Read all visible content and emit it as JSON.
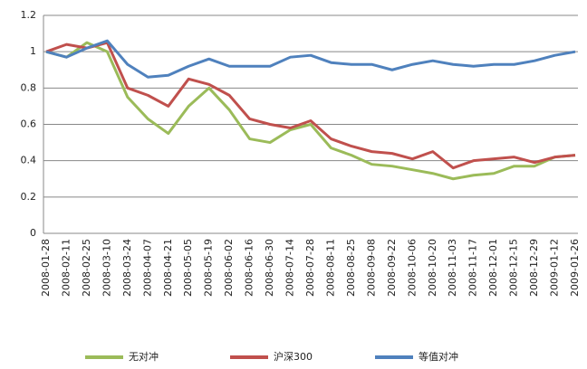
{
  "chart_data": {
    "type": "line",
    "categories": [
      "2008-01-28",
      "2008-02-11",
      "2008-02-25",
      "2008-03-10",
      "2008-03-24",
      "2008-04-07",
      "2008-04-21",
      "2008-05-05",
      "2008-05-19",
      "2008-06-02",
      "2008-06-16",
      "2008-06-30",
      "2008-07-14",
      "2008-07-28",
      "2008-08-11",
      "2008-08-25",
      "2008-09-08",
      "2008-09-22",
      "2008-10-06",
      "2008-10-20",
      "2008-11-03",
      "2008-11-17",
      "2008-12-01",
      "2008-12-15",
      "2008-12-29",
      "2009-01-12",
      "2009-01-26"
    ],
    "series": [
      {
        "name": "无对冲",
        "color": "#9bbb59",
        "values": [
          1.0,
          0.97,
          1.05,
          1.0,
          0.75,
          0.63,
          0.55,
          0.7,
          0.8,
          0.68,
          0.52,
          0.5,
          0.57,
          0.6,
          0.47,
          0.43,
          0.38,
          0.37,
          0.35,
          0.33,
          0.3,
          0.32,
          0.33,
          0.37,
          0.37,
          0.42,
          0.43
        ]
      },
      {
        "name": "沪深300",
        "color": "#c0504d",
        "values": [
          1.0,
          1.04,
          1.02,
          1.05,
          0.8,
          0.76,
          0.7,
          0.85,
          0.82,
          0.76,
          0.63,
          0.6,
          0.58,
          0.62,
          0.52,
          0.48,
          0.45,
          0.44,
          0.41,
          0.45,
          0.36,
          0.4,
          0.41,
          0.42,
          0.39,
          0.42,
          0.43
        ]
      },
      {
        "name": "等值对冲",
        "color": "#4f81bd",
        "values": [
          1.0,
          0.97,
          1.02,
          1.06,
          0.93,
          0.86,
          0.87,
          0.92,
          0.96,
          0.92,
          0.92,
          0.92,
          0.97,
          0.98,
          0.94,
          0.93,
          0.93,
          0.9,
          0.93,
          0.95,
          0.93,
          0.92,
          0.93,
          0.93,
          0.95,
          0.98,
          1.0
        ]
      }
    ],
    "ylim": [
      0,
      1.2
    ],
    "yticks": [
      0,
      0.2,
      0.4,
      0.6,
      0.8,
      1,
      1.2
    ],
    "grid": true,
    "legend": "bottom"
  }
}
